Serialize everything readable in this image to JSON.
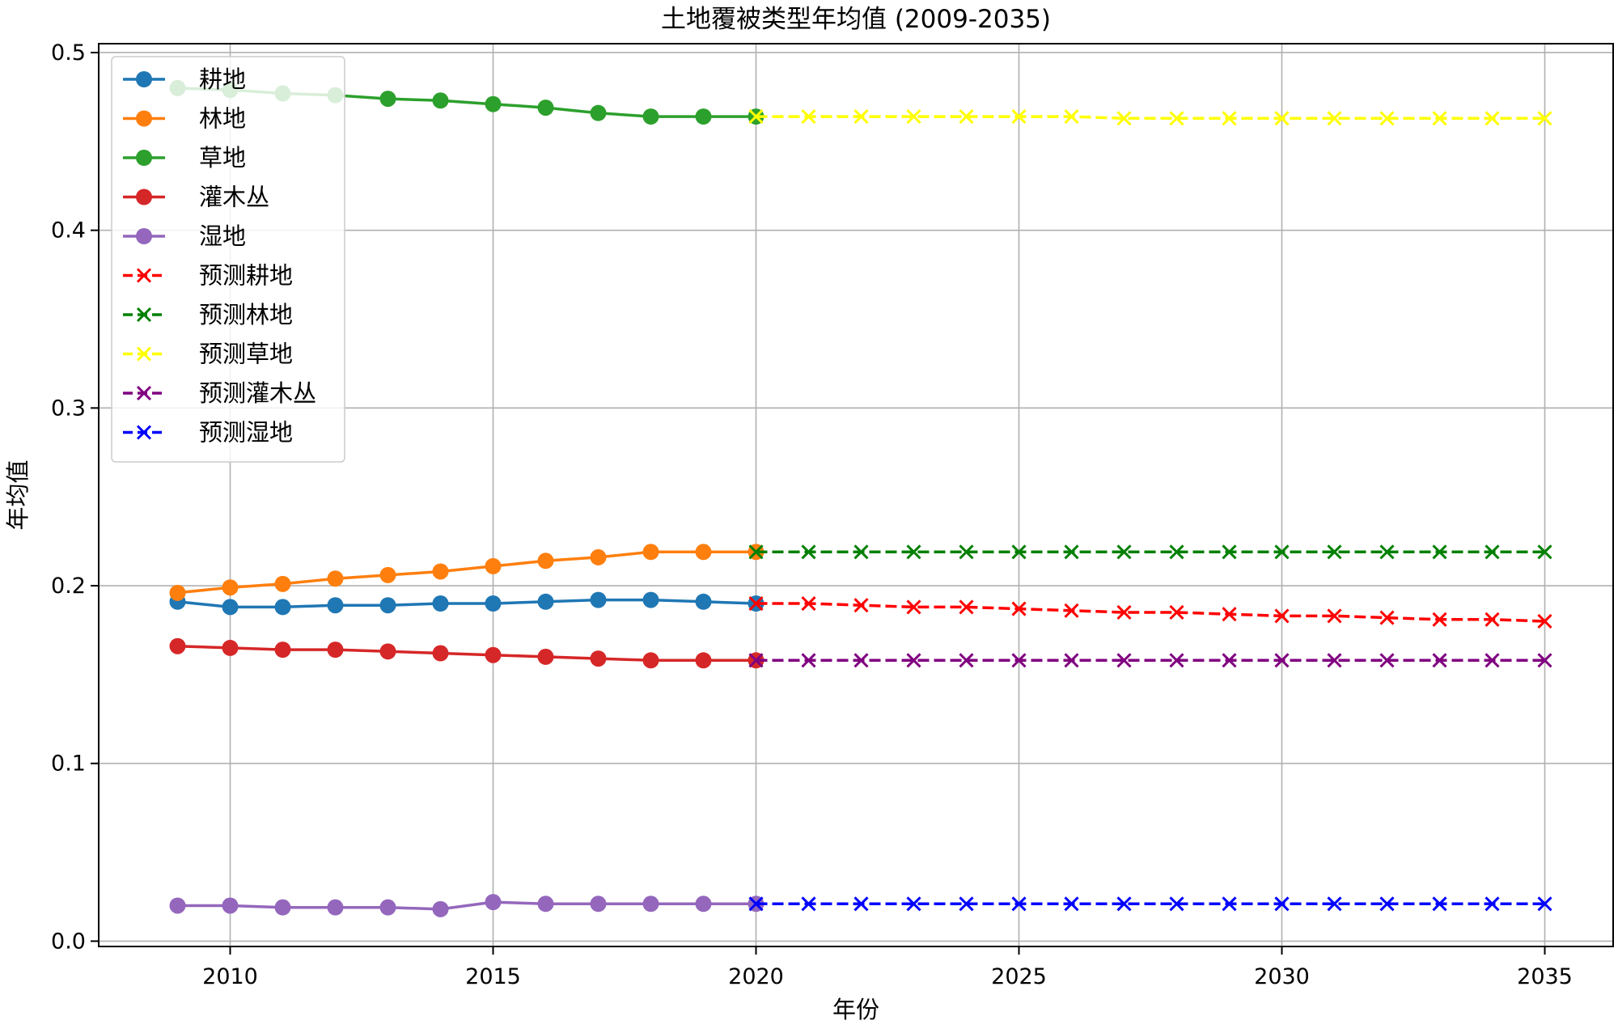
{
  "chart_data": {
    "type": "line",
    "title": "土地覆被类型年均值 (2009-2035)",
    "xlabel": "年份",
    "ylabel": "年均值",
    "xlim": [
      2007.5,
      2036.3
    ],
    "ylim": [
      -0.003,
      0.505
    ],
    "x_ticks": [
      "2010",
      "2015",
      "2020",
      "2025",
      "2030",
      "2035"
    ],
    "y_ticks": [
      "0.0",
      "0.1",
      "0.2",
      "0.3",
      "0.4",
      "0.5"
    ],
    "grid": true,
    "legend_position": "top-left",
    "series": [
      {
        "name": "耕地",
        "color": "#1f77b4",
        "marker": "circle",
        "linestyle": "solid",
        "x": [
          2009,
          2010,
          2011,
          2012,
          2013,
          2014,
          2015,
          2016,
          2017,
          2018,
          2019,
          2020
        ],
        "values": [
          0.191,
          0.188,
          0.188,
          0.189,
          0.189,
          0.19,
          0.19,
          0.191,
          0.192,
          0.192,
          0.191,
          0.19
        ]
      },
      {
        "name": "林地",
        "color": "#ff7f0e",
        "marker": "circle",
        "linestyle": "solid",
        "x": [
          2009,
          2010,
          2011,
          2012,
          2013,
          2014,
          2015,
          2016,
          2017,
          2018,
          2019,
          2020
        ],
        "values": [
          0.196,
          0.199,
          0.201,
          0.204,
          0.206,
          0.208,
          0.211,
          0.214,
          0.216,
          0.219,
          0.219,
          0.219
        ]
      },
      {
        "name": "草地",
        "color": "#2ca02c",
        "marker": "circle",
        "linestyle": "solid",
        "x": [
          2009,
          2010,
          2011,
          2012,
          2013,
          2014,
          2015,
          2016,
          2017,
          2018,
          2019,
          2020
        ],
        "values": [
          0.48,
          0.479,
          0.477,
          0.476,
          0.474,
          0.473,
          0.471,
          0.469,
          0.466,
          0.464,
          0.464,
          0.464
        ]
      },
      {
        "name": "灌木丛",
        "color": "#d62728",
        "marker": "circle",
        "linestyle": "solid",
        "x": [
          2009,
          2010,
          2011,
          2012,
          2013,
          2014,
          2015,
          2016,
          2017,
          2018,
          2019,
          2020
        ],
        "values": [
          0.166,
          0.165,
          0.164,
          0.164,
          0.163,
          0.162,
          0.161,
          0.16,
          0.159,
          0.158,
          0.158,
          0.158
        ]
      },
      {
        "name": "湿地",
        "color": "#9467bd",
        "marker": "circle",
        "linestyle": "solid",
        "x": [
          2009,
          2010,
          2011,
          2012,
          2013,
          2014,
          2015,
          2016,
          2017,
          2018,
          2019,
          2020
        ],
        "values": [
          0.02,
          0.02,
          0.019,
          0.019,
          0.019,
          0.018,
          0.022,
          0.021,
          0.021,
          0.021,
          0.021,
          0.021
        ]
      },
      {
        "name": "预测耕地",
        "color": "#ff0000",
        "marker": "x",
        "linestyle": "dashed",
        "x": [
          2020,
          2021,
          2022,
          2023,
          2024,
          2025,
          2026,
          2027,
          2028,
          2029,
          2030,
          2031,
          2032,
          2033,
          2034,
          2035
        ],
        "values": [
          0.19,
          0.19,
          0.189,
          0.188,
          0.188,
          0.187,
          0.186,
          0.185,
          0.185,
          0.184,
          0.183,
          0.183,
          0.182,
          0.181,
          0.181,
          0.18
        ]
      },
      {
        "name": "预测林地",
        "color": "#008000",
        "marker": "x",
        "linestyle": "dashed",
        "x": [
          2020,
          2021,
          2022,
          2023,
          2024,
          2025,
          2026,
          2027,
          2028,
          2029,
          2030,
          2031,
          2032,
          2033,
          2034,
          2035
        ],
        "values": [
          0.219,
          0.219,
          0.219,
          0.219,
          0.219,
          0.219,
          0.219,
          0.219,
          0.219,
          0.219,
          0.219,
          0.219,
          0.219,
          0.219,
          0.219,
          0.219
        ]
      },
      {
        "name": "预测草地",
        "color": "#ffff00",
        "marker": "x",
        "linestyle": "dashed",
        "x": [
          2020,
          2021,
          2022,
          2023,
          2024,
          2025,
          2026,
          2027,
          2028,
          2029,
          2030,
          2031,
          2032,
          2033,
          2034,
          2035
        ],
        "values": [
          0.464,
          0.464,
          0.464,
          0.464,
          0.464,
          0.464,
          0.464,
          0.463,
          0.463,
          0.463,
          0.463,
          0.463,
          0.463,
          0.463,
          0.463,
          0.463
        ]
      },
      {
        "name": "预测灌木丛",
        "color": "#800080",
        "marker": "x",
        "linestyle": "dashed",
        "x": [
          2020,
          2021,
          2022,
          2023,
          2024,
          2025,
          2026,
          2027,
          2028,
          2029,
          2030,
          2031,
          2032,
          2033,
          2034,
          2035
        ],
        "values": [
          0.158,
          0.158,
          0.158,
          0.158,
          0.158,
          0.158,
          0.158,
          0.158,
          0.158,
          0.158,
          0.158,
          0.158,
          0.158,
          0.158,
          0.158,
          0.158
        ]
      },
      {
        "name": "预测湿地",
        "color": "#0000ff",
        "marker": "x",
        "linestyle": "dashed",
        "x": [
          2020,
          2021,
          2022,
          2023,
          2024,
          2025,
          2026,
          2027,
          2028,
          2029,
          2030,
          2031,
          2032,
          2033,
          2034,
          2035
        ],
        "values": [
          0.021,
          0.021,
          0.021,
          0.021,
          0.021,
          0.021,
          0.021,
          0.021,
          0.021,
          0.021,
          0.021,
          0.021,
          0.021,
          0.021,
          0.021,
          0.021
        ]
      }
    ]
  }
}
